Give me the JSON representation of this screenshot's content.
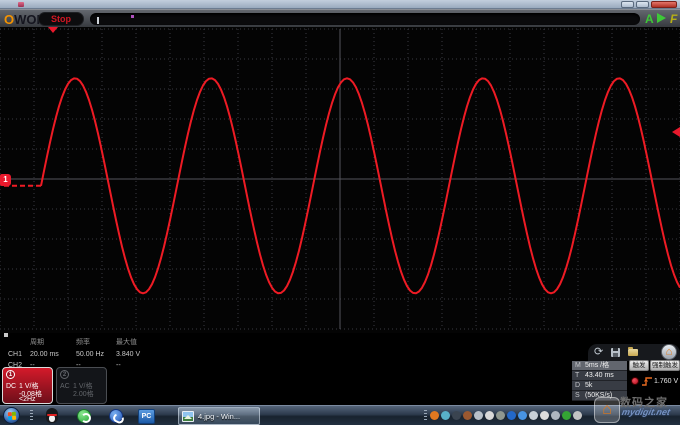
{
  "window": {
    "buttons": {
      "minimize": "minimize",
      "maximize": "maximize",
      "close": "close"
    }
  },
  "toolbar": {
    "logo_first": "O",
    "logo_rest": "WON",
    "stop_label": "Stop",
    "a_label": "A",
    "f_label": "F"
  },
  "scope": {
    "channel_marker": "1"
  },
  "chart_data": {
    "type": "line",
    "signal": "sine",
    "frequency_hz": 50,
    "period_ms": 20,
    "max_v": 3.84,
    "volts_per_div": 1,
    "timebase_ms_per_div": 5,
    "trigger_level_v": 1.76,
    "trigger_time_ms": 43.4,
    "offset_div": -0.08,
    "grid": {
      "h_divs": 20,
      "v_divs": 10,
      "style": "dotted"
    },
    "trace_color": "#ee1b24"
  },
  "measurements": {
    "headers": [
      "周期",
      "频率",
      "最大值"
    ],
    "rows": [
      {
        "ch": "CH1",
        "v1": "20.00 ms",
        "v2": "50.00 Hz",
        "v3": "3.840 V"
      },
      {
        "ch": "CH2",
        "v1": "--",
        "v2": "--",
        "v3": "--"
      }
    ]
  },
  "channels": [
    {
      "num": "1",
      "coupling": "DC",
      "scale": "1 V/格",
      "position": "-0.08格",
      "filter": "<2Hz"
    },
    {
      "num": "2",
      "coupling": "AC",
      "scale": "1 V/格",
      "position": "2.00格",
      "filter": ""
    }
  ],
  "right_panel": {
    "icons": [
      "refresh-icon",
      "save-icon",
      "folder-icon",
      "home-icon"
    ],
    "home_glyph": "⌂",
    "refresh_glyph": "⟳",
    "info_rows": [
      {
        "label": "M",
        "value": "5ms /格"
      },
      {
        "label": "T",
        "value": "43.40 ms"
      },
      {
        "label": "D",
        "value": "5k"
      },
      {
        "label": "S",
        "value": "(50KS/s)"
      }
    ],
    "tabs": {
      "trigger": "触发",
      "force_trigger": "强制触发"
    },
    "trigger": {
      "source_channel": "1",
      "edge": "rising",
      "level": "1.760 V"
    }
  },
  "watermark": {
    "logo_glyph": "⌂",
    "line1": "数码之家",
    "line2": "mydigit.net"
  },
  "taskbar": {
    "pc_label": "PC",
    "window_button_label": "4.jpg - Win...",
    "tray_icons": [
      {
        "name": "tray-orange-ball-icon",
        "color": "#e07820"
      },
      {
        "name": "tray-compass-icon",
        "color": "#58b0c8"
      },
      {
        "name": "tray-input-icon",
        "color": "#3a4450"
      },
      {
        "name": "tray-misc-icon",
        "color": "#9a5830"
      },
      {
        "name": "tray-keyboard-icon",
        "color": "#b8c0c8"
      },
      {
        "name": "tray-pen-icon",
        "color": "#d8d8d8"
      },
      {
        "name": "tray-wrench-icon",
        "color": "#8f978f"
      },
      {
        "name": "tray-help-icon",
        "color": "#2368c8"
      },
      {
        "name": "tray-cloud-icon",
        "color": "#4894e4"
      },
      {
        "name": "tray-cursor-icon",
        "color": "#c8d0d8"
      },
      {
        "name": "tray-volume-icon",
        "color": "#dcdcdc"
      },
      {
        "name": "tray-network-icon",
        "color": "#aeb6c0"
      },
      {
        "name": "tray-shield-icon",
        "color": "#34a434"
      },
      {
        "name": "tray-battery-icon",
        "color": "#c4c4c4"
      }
    ]
  }
}
